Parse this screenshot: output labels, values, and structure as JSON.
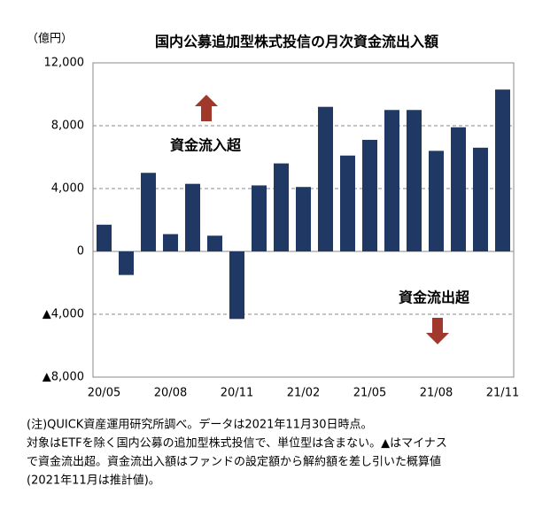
{
  "chart_data": {
    "type": "bar",
    "title": "国内公募追加型株式投信の月次資金流出入額",
    "y_unit": "（億円）",
    "categories": [
      "20/05",
      null,
      null,
      "20/08",
      null,
      null,
      "20/11",
      null,
      null,
      "21/02",
      null,
      null,
      "21/05",
      null,
      null,
      "21/08",
      null,
      null,
      "21/11"
    ],
    "values": [
      1700,
      -1500,
      5000,
      1100,
      4300,
      1000,
      -4300,
      4200,
      5600,
      4100,
      9200,
      6100,
      7100,
      9000,
      9000,
      6400,
      7900,
      6600,
      10300
    ],
    "color": "#1f3864",
    "ylim": [
      -8000,
      12000
    ],
    "yticks": [
      {
        "value": -8000,
        "label": "▲8,000"
      },
      {
        "value": -4000,
        "label": "▲4,000"
      },
      0,
      {
        "value": 4000,
        "label": "4,000"
      },
      {
        "value": 8000,
        "label": "8,000"
      },
      {
        "value": 12000,
        "label": "12,000"
      }
    ],
    "grid": true,
    "annotations": [
      "資金流入超",
      "資金流出超"
    ],
    "notes": [
      "(注)QUICK資産運用研究所調べ。データは2021年11月30日時点。",
      "対象はETFを除く国内公募の追加型株式投信で、単位型は含まない。▲はマイナス",
      "で資金流出超。資金流出入額はファンドの設定額から解約額を差し引いた概算値",
      "(2021年11月は推計値)。"
    ]
  }
}
